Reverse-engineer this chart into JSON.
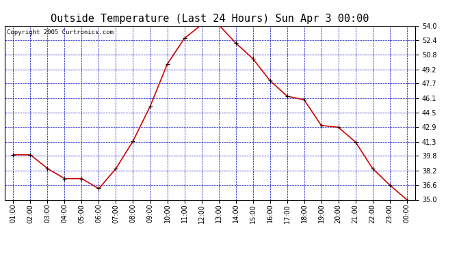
{
  "title": "Outside Temperature (Last 24 Hours) Sun Apr 3 00:00",
  "copyright": "Copyright 2005 Curtronics.com",
  "x_labels": [
    "01:00",
    "02:00",
    "03:00",
    "04:00",
    "05:00",
    "06:00",
    "07:00",
    "08:00",
    "09:00",
    "10:00",
    "11:00",
    "12:00",
    "13:00",
    "14:00",
    "15:00",
    "16:00",
    "17:00",
    "18:00",
    "19:00",
    "20:00",
    "21:00",
    "22:00",
    "23:00",
    "00:00"
  ],
  "x_values": [
    1,
    2,
    3,
    4,
    5,
    6,
    7,
    8,
    9,
    10,
    11,
    12,
    13,
    14,
    15,
    16,
    17,
    18,
    19,
    20,
    21,
    22,
    23,
    24
  ],
  "y_values": [
    39.9,
    39.9,
    38.4,
    37.3,
    37.3,
    36.2,
    38.4,
    41.4,
    45.2,
    49.8,
    52.6,
    54.1,
    54.1,
    52.1,
    50.4,
    48.0,
    46.3,
    45.9,
    43.1,
    42.9,
    41.3,
    38.4,
    36.6,
    35.0
  ],
  "ylim": [
    35.0,
    54.0
  ],
  "yticks": [
    35.0,
    36.6,
    38.2,
    39.8,
    41.3,
    42.9,
    44.5,
    46.1,
    47.7,
    49.2,
    50.8,
    52.4,
    54.0
  ],
  "line_color": "#cc0000",
  "marker_color": "#000000",
  "grid_color": "#0000bb",
  "bg_color": "#ffffff",
  "plot_bg_color": "#ffffff",
  "title_fontsize": 11,
  "copyright_fontsize": 6.5,
  "tick_fontsize": 7,
  "ytick_fontsize": 7
}
